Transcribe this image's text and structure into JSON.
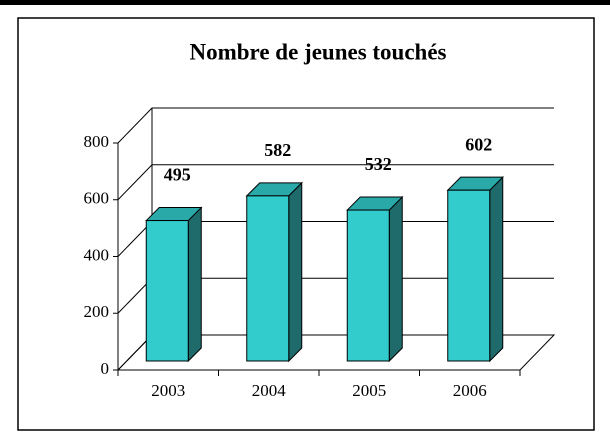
{
  "chart_data": {
    "type": "bar3d",
    "title": "Nombre de jeunes touchés",
    "categories": [
      "2003",
      "2004",
      "2005",
      "2006"
    ],
    "values": [
      495,
      582,
      532,
      602
    ],
    "color": "#33cccc",
    "ylim": [
      0,
      800
    ],
    "yticks": [
      0,
      200,
      400,
      600,
      800
    ],
    "grid": true
  }
}
